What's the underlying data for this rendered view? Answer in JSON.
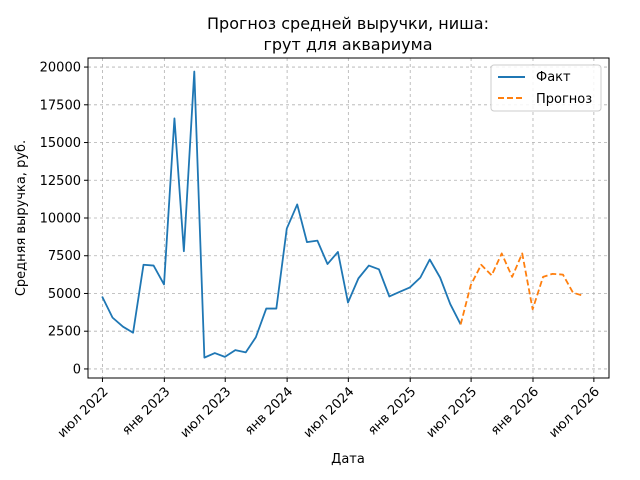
{
  "chart_data": {
    "type": "line",
    "title_line1": "Прогноз средней выручки, ниша:",
    "title_line2": "грут для аквариума",
    "xlabel": "Дата",
    "ylabel": "Средняя выручка, руб.",
    "ylim": [
      -600,
      20600
    ],
    "yticks": [
      0,
      2500,
      5000,
      7500,
      10000,
      12500,
      15000,
      17500,
      20000
    ],
    "ytick_labels": [
      "0",
      "2500",
      "5000",
      "7500",
      "10000",
      "12500",
      "15000",
      "17500",
      "20000"
    ],
    "xlim": [
      "2022-05-19",
      "2026-08-15"
    ],
    "xticks": [
      "2022-07-01",
      "2023-01-01",
      "2023-07-01",
      "2024-01-01",
      "2024-07-01",
      "2025-01-01",
      "2025-07-01",
      "2026-01-01",
      "2026-07-01"
    ],
    "xtick_labels": [
      "июл 2022",
      "янв 2023",
      "июл 2023",
      "янв 2024",
      "июл 2024",
      "янв 2025",
      "июл 2025",
      "янв 2026",
      "июл 2026"
    ],
    "grid": true,
    "legend_position": "top-right",
    "series": [
      {
        "name": "Факт",
        "color": "#1f77b4",
        "style": "solid",
        "points": [
          [
            "2022-06-30",
            4800
          ],
          [
            "2022-07-31",
            3400
          ],
          [
            "2022-08-31",
            2800
          ],
          [
            "2022-09-30",
            2400
          ],
          [
            "2022-10-31",
            6900
          ],
          [
            "2022-11-30",
            6850
          ],
          [
            "2022-12-31",
            5600
          ],
          [
            "2023-01-31",
            16600
          ],
          [
            "2023-02-28",
            7800
          ],
          [
            "2023-03-31",
            19700
          ],
          [
            "2023-04-30",
            750
          ],
          [
            "2023-05-31",
            1050
          ],
          [
            "2023-06-30",
            800
          ],
          [
            "2023-07-31",
            1250
          ],
          [
            "2023-08-31",
            1100
          ],
          [
            "2023-09-30",
            2100
          ],
          [
            "2023-10-31",
            4000
          ],
          [
            "2023-11-30",
            4000
          ],
          [
            "2023-12-31",
            9300
          ],
          [
            "2024-01-31",
            10900
          ],
          [
            "2024-02-29",
            8400
          ],
          [
            "2024-03-31",
            8500
          ],
          [
            "2024-04-30",
            6950
          ],
          [
            "2024-05-31",
            7750
          ],
          [
            "2024-06-30",
            4400
          ],
          [
            "2024-07-31",
            6000
          ],
          [
            "2024-08-31",
            6850
          ],
          [
            "2024-09-30",
            6600
          ],
          [
            "2024-10-31",
            4800
          ],
          [
            "2024-11-30",
            5100
          ],
          [
            "2024-12-31",
            5400
          ],
          [
            "2025-01-31",
            6050
          ],
          [
            "2025-02-28",
            7250
          ],
          [
            "2025-03-31",
            6050
          ],
          [
            "2025-04-30",
            4300
          ],
          [
            "2025-05-31",
            2950
          ]
        ]
      },
      {
        "name": "Прогноз",
        "color": "#ff7f0e",
        "style": "dashed",
        "points": [
          [
            "2025-05-31",
            2950
          ],
          [
            "2025-06-30",
            5550
          ],
          [
            "2025-07-31",
            6900
          ],
          [
            "2025-08-31",
            6200
          ],
          [
            "2025-09-30",
            7650
          ],
          [
            "2025-10-31",
            6100
          ],
          [
            "2025-11-30",
            7650
          ],
          [
            "2025-12-31",
            3950
          ],
          [
            "2026-01-31",
            6100
          ],
          [
            "2026-02-28",
            6300
          ],
          [
            "2026-03-31",
            6250
          ],
          [
            "2026-04-30",
            5050
          ],
          [
            "2026-05-31",
            4850
          ]
        ]
      }
    ]
  }
}
